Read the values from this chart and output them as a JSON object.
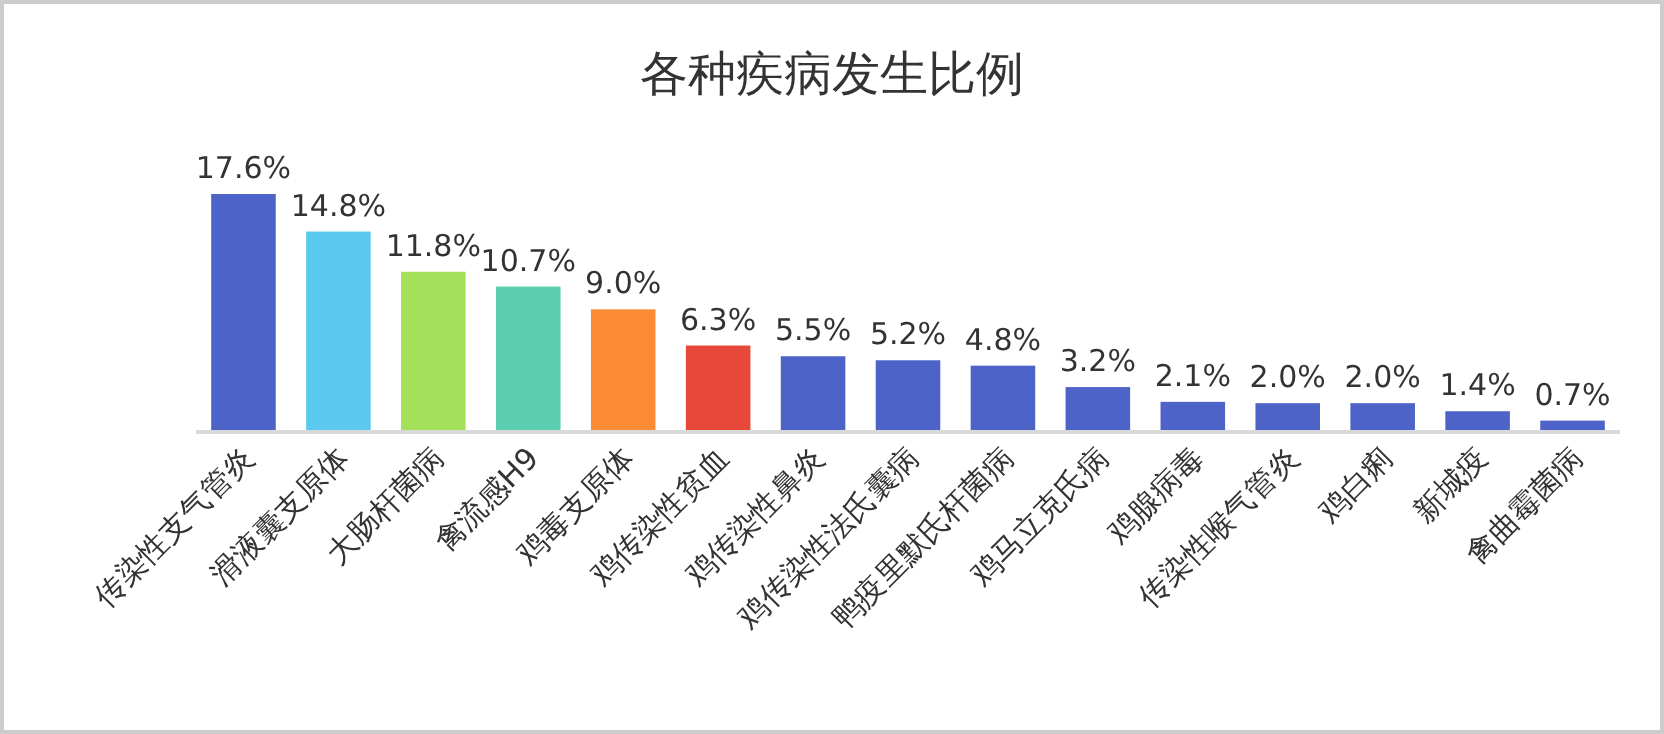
{
  "chart_data": {
    "type": "bar",
    "title": "各种疾病发生比例",
    "categories": [
      "传染性支气管炎",
      "滑液囊支原体",
      "大肠杆菌病",
      "禽流感H9",
      "鸡毒支原体",
      "鸡传染性贫血",
      "鸡传染性鼻炎",
      "鸡传染性法氏囊病",
      "鸭疫里默氏杆菌病",
      "鸡马立克氏病",
      "鸡腺病毒",
      "传染性喉气管炎",
      "鸡白痢",
      "新城疫",
      "禽曲霉菌病"
    ],
    "values": [
      17.6,
      14.8,
      11.8,
      10.7,
      9.0,
      6.3,
      5.5,
      5.2,
      4.8,
      3.2,
      2.1,
      2.0,
      2.0,
      1.4,
      0.7
    ],
    "colors": [
      "#4e63c8",
      "#5bc8ee",
      "#a4e05a",
      "#5dcfb0",
      "#fb8c35",
      "#e8483a",
      "#4e63c8",
      "#4e63c8",
      "#4e63c8",
      "#4e63c8",
      "#4e63c8",
      "#4e63c8",
      "#4e63c8",
      "#4e63c8",
      "#4e63c8"
    ],
    "value_labels": [
      "17.6%",
      "14.8%",
      "11.8%",
      "10.7%",
      "9.0%",
      "6.3%",
      "5.5%",
      "5.2%",
      "4.8%",
      "3.2%",
      "2.1%",
      "2.0%",
      "2.0%",
      "1.4%",
      "0.7%"
    ]
  }
}
